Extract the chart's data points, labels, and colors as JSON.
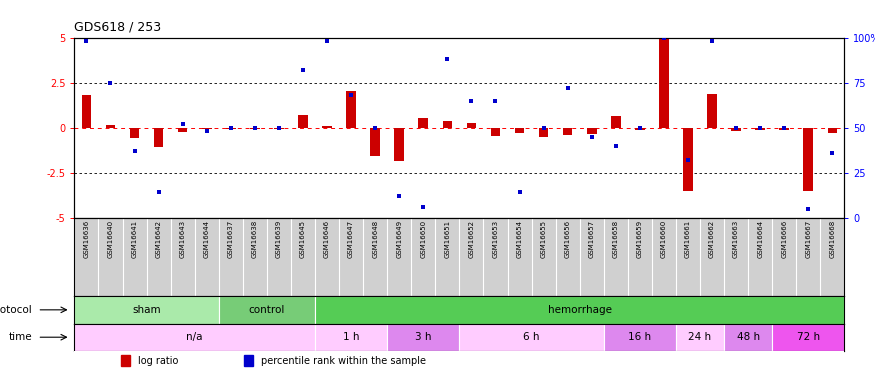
{
  "title": "GDS618 / 253",
  "samples": [
    "GSM16636",
    "GSM16640",
    "GSM16641",
    "GSM16642",
    "GSM16643",
    "GSM16644",
    "GSM16637",
    "GSM16638",
    "GSM16639",
    "GSM16645",
    "GSM16646",
    "GSM16647",
    "GSM16648",
    "GSM16649",
    "GSM16650",
    "GSM16651",
    "GSM16652",
    "GSM16653",
    "GSM16654",
    "GSM16655",
    "GSM16656",
    "GSM16657",
    "GSM16658",
    "GSM16659",
    "GSM16660",
    "GSM16661",
    "GSM16662",
    "GSM16663",
    "GSM16664",
    "GSM16666",
    "GSM16667",
    "GSM16668"
  ],
  "log_ratio": [
    1.8,
    0.15,
    -0.55,
    -1.05,
    -0.22,
    -0.1,
    -0.05,
    -0.05,
    -0.05,
    0.7,
    0.1,
    2.05,
    -1.55,
    -1.85,
    0.55,
    0.35,
    0.25,
    -0.45,
    -0.3,
    -0.5,
    -0.4,
    -0.35,
    0.65,
    -0.12,
    5.0,
    -3.5,
    1.85,
    -0.2,
    -0.12,
    -0.12,
    -3.5,
    -0.28
  ],
  "percentile_rank": [
    98,
    75,
    37,
    14,
    52,
    48,
    50,
    50,
    50,
    82,
    98,
    68,
    50,
    12,
    6,
    88,
    65,
    65,
    14,
    50,
    72,
    45,
    40,
    50,
    100,
    32,
    98,
    50,
    50,
    50,
    5,
    36
  ],
  "ylim": [
    -5,
    5
  ],
  "y2lim": [
    0,
    100
  ],
  "yticks": [
    -5,
    -2.5,
    0,
    2.5,
    5
  ],
  "y2ticks": [
    0,
    25,
    50,
    75,
    100
  ],
  "dotted_lines": [
    -2.5,
    2.5
  ],
  "bar_color": "#cc0000",
  "scatter_color": "#0000cc",
  "background_color": "#ffffff",
  "xlabels_bg": "#d0d0d0",
  "protocol_groups": [
    {
      "label": "sham",
      "start": 0,
      "end": 5,
      "color": "#aaeaaa"
    },
    {
      "label": "control",
      "start": 6,
      "end": 9,
      "color": "#77cc77"
    },
    {
      "label": "hemorrhage",
      "start": 10,
      "end": 31,
      "color": "#55cc55"
    }
  ],
  "time_groups": [
    {
      "label": "n/a",
      "start": 0,
      "end": 9,
      "color": "#ffccff"
    },
    {
      "label": "1 h",
      "start": 10,
      "end": 12,
      "color": "#ffccff"
    },
    {
      "label": "3 h",
      "start": 13,
      "end": 15,
      "color": "#dd88ee"
    },
    {
      "label": "6 h",
      "start": 16,
      "end": 21,
      "color": "#ffccff"
    },
    {
      "label": "16 h",
      "start": 22,
      "end": 24,
      "color": "#dd88ee"
    },
    {
      "label": "24 h",
      "start": 25,
      "end": 26,
      "color": "#ffccff"
    },
    {
      "label": "48 h",
      "start": 27,
      "end": 28,
      "color": "#dd88ee"
    },
    {
      "label": "72 h",
      "start": 29,
      "end": 31,
      "color": "#ee55ee"
    }
  ],
  "legend_items": [
    {
      "label": "log ratio",
      "color": "#cc0000"
    },
    {
      "label": "percentile rank within the sample",
      "color": "#0000cc"
    }
  ],
  "title_fontsize": 9,
  "tick_fontsize": 7,
  "sample_fontsize": 5,
  "row_label_fontsize": 7.5,
  "row_text_fontsize": 7.5
}
